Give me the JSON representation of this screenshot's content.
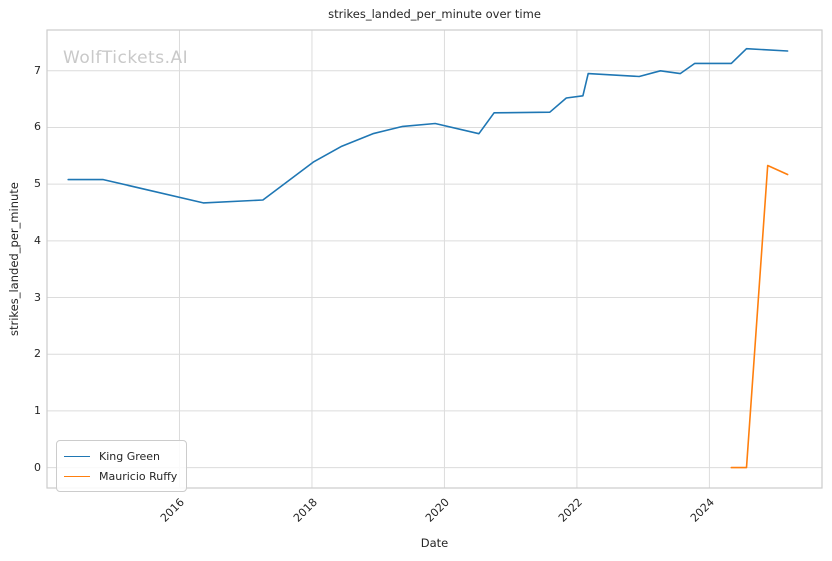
{
  "watermark": "WolfTickets.AI",
  "chart_data": {
    "type": "line",
    "title": "strikes_landed_per_minute over time",
    "xlabel": "Date",
    "ylabel": "strikes_landed_per_minute",
    "grid": true,
    "legend_position": "lower left",
    "x_domain": [
      2014.0,
      2025.7
    ],
    "y_domain": [
      -0.36,
      7.72
    ],
    "x_ticks": [
      2016,
      2018,
      2020,
      2022,
      2024
    ],
    "y_ticks": [
      0,
      1,
      2,
      3,
      4,
      5,
      6,
      7
    ],
    "colors": {
      "grid": "#dcdcdc",
      "spine": "#cccccc",
      "text": "#262626",
      "watermark": "#c9c9c9",
      "background": "#ffffff"
    },
    "series": [
      {
        "name": "King Green",
        "color": "#1f77b4",
        "points": [
          [
            2014.32,
            5.08
          ],
          [
            2014.85,
            5.08
          ],
          [
            2016.36,
            4.67
          ],
          [
            2017.26,
            4.72
          ],
          [
            2018.02,
            5.39
          ],
          [
            2018.45,
            5.67
          ],
          [
            2018.92,
            5.89
          ],
          [
            2019.37,
            6.02
          ],
          [
            2019.86,
            6.07
          ],
          [
            2020.52,
            5.89
          ],
          [
            2020.75,
            6.26
          ],
          [
            2021.59,
            6.27
          ],
          [
            2021.84,
            6.52
          ],
          [
            2022.09,
            6.56
          ],
          [
            2022.17,
            6.95
          ],
          [
            2022.94,
            6.9
          ],
          [
            2023.26,
            7.0
          ],
          [
            2023.56,
            6.95
          ],
          [
            2023.78,
            7.13
          ],
          [
            2024.33,
            7.13
          ],
          [
            2024.56,
            7.39
          ],
          [
            2025.18,
            7.35
          ]
        ]
      },
      {
        "name": "Mauricio Ruffy",
        "color": "#ff7f0e",
        "points": [
          [
            2024.33,
            0.0
          ],
          [
            2024.56,
            0.0
          ],
          [
            2024.88,
            5.33
          ],
          [
            2025.18,
            5.17
          ]
        ]
      }
    ]
  }
}
